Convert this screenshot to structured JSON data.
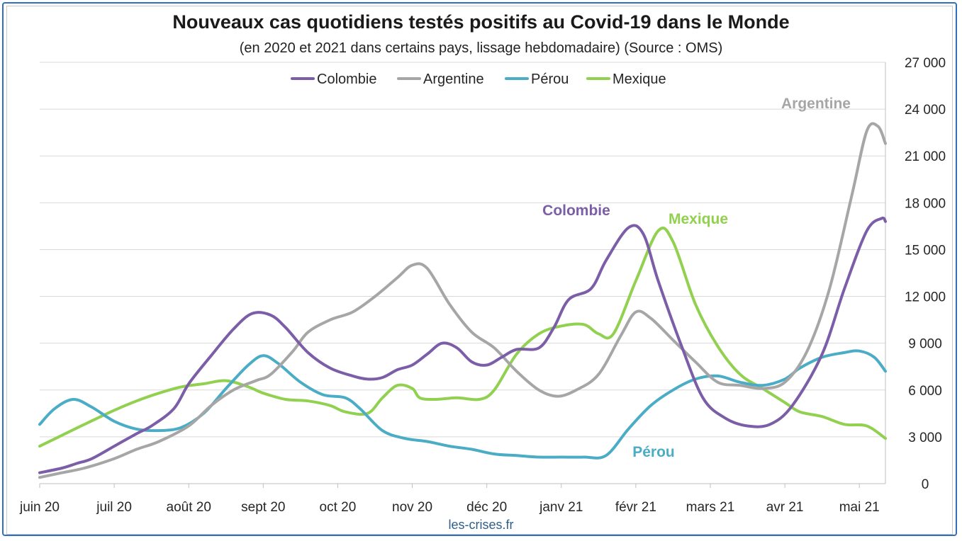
{
  "chart_data": {
    "type": "line",
    "title": "Nouveaux cas quotidiens testés positifs au Covid-19 dans le Monde",
    "subtitle": "(en 2020 et 2021 dans certains pays, lissage hebdomadaire) (Source : OMS)",
    "source_note": "les-crises.fr",
    "x_tick_labels": [
      "juin 20",
      "juil 20",
      "août 20",
      "sept 20",
      "oct 20",
      "nov 20",
      "déc 20",
      "janv 21",
      "févr 21",
      "mars 21",
      "avr 21",
      "mai 21"
    ],
    "y_tick_labels": [
      "0",
      "3 000",
      "6 000",
      "9 000",
      "12 000",
      "15 000",
      "18 000",
      "21 000",
      "24 000",
      "27 000"
    ],
    "ylim": [
      0,
      27000
    ],
    "y_axis_side": "right",
    "x_range_months": [
      0,
      11.35
    ],
    "grid": true,
    "legend_position": "top",
    "series": [
      {
        "name": "Colombie",
        "color": "#7b5ea7",
        "label": "Colombie",
        "points": [
          [
            0,
            700
          ],
          [
            0.3,
            1000
          ],
          [
            0.5,
            1300
          ],
          [
            0.7,
            1600
          ],
          [
            1.0,
            2400
          ],
          [
            1.3,
            3200
          ],
          [
            1.5,
            3700
          ],
          [
            1.8,
            4800
          ],
          [
            2.0,
            6400
          ],
          [
            2.3,
            8200
          ],
          [
            2.6,
            9900
          ],
          [
            2.85,
            10900
          ],
          [
            3.1,
            10800
          ],
          [
            3.3,
            10000
          ],
          [
            3.6,
            8400
          ],
          [
            3.9,
            7400
          ],
          [
            4.2,
            6900
          ],
          [
            4.4,
            6700
          ],
          [
            4.6,
            6800
          ],
          [
            4.8,
            7300
          ],
          [
            5.0,
            7600
          ],
          [
            5.2,
            8300
          ],
          [
            5.4,
            9000
          ],
          [
            5.6,
            8700
          ],
          [
            5.8,
            7800
          ],
          [
            6.0,
            7600
          ],
          [
            6.2,
            8100
          ],
          [
            6.4,
            8600
          ],
          [
            6.7,
            8700
          ],
          [
            6.9,
            10000
          ],
          [
            7.1,
            11800
          ],
          [
            7.4,
            12500
          ],
          [
            7.6,
            14300
          ],
          [
            7.9,
            16400
          ],
          [
            8.1,
            16000
          ],
          [
            8.3,
            13000
          ],
          [
            8.6,
            9000
          ],
          [
            8.9,
            5500
          ],
          [
            9.2,
            4200
          ],
          [
            9.5,
            3700
          ],
          [
            9.8,
            3800
          ],
          [
            10.1,
            5000
          ],
          [
            10.5,
            8300
          ],
          [
            10.8,
            12500
          ],
          [
            11.1,
            16200
          ],
          [
            11.3,
            17000
          ],
          [
            11.35,
            16800
          ]
        ]
      },
      {
        "name": "Argentine",
        "color": "#a6a6a6",
        "label": "Argentine",
        "points": [
          [
            0,
            400
          ],
          [
            0.3,
            700
          ],
          [
            0.6,
            1000
          ],
          [
            1.0,
            1600
          ],
          [
            1.3,
            2200
          ],
          [
            1.6,
            2700
          ],
          [
            2.0,
            3700
          ],
          [
            2.3,
            5000
          ],
          [
            2.6,
            6000
          ],
          [
            2.9,
            6600
          ],
          [
            3.1,
            7000
          ],
          [
            3.4,
            8500
          ],
          [
            3.6,
            9700
          ],
          [
            3.9,
            10500
          ],
          [
            4.2,
            11000
          ],
          [
            4.5,
            12000
          ],
          [
            4.8,
            13200
          ],
          [
            5.0,
            14000
          ],
          [
            5.2,
            13800
          ],
          [
            5.5,
            11500
          ],
          [
            5.8,
            9700
          ],
          [
            6.1,
            8700
          ],
          [
            6.4,
            7200
          ],
          [
            6.7,
            6000
          ],
          [
            6.95,
            5600
          ],
          [
            7.2,
            6000
          ],
          [
            7.5,
            7000
          ],
          [
            7.8,
            9500
          ],
          [
            8.0,
            11000
          ],
          [
            8.2,
            10600
          ],
          [
            8.5,
            9200
          ],
          [
            8.8,
            7800
          ],
          [
            9.1,
            6500
          ],
          [
            9.4,
            6300
          ],
          [
            9.7,
            6100
          ],
          [
            10.0,
            6500
          ],
          [
            10.3,
            8500
          ],
          [
            10.6,
            12500
          ],
          [
            10.9,
            18500
          ],
          [
            11.1,
            22600
          ],
          [
            11.25,
            22900
          ],
          [
            11.35,
            21800
          ]
        ]
      },
      {
        "name": "Pérou",
        "color": "#4bacc6",
        "label": "Pérou",
        "points": [
          [
            0,
            3800
          ],
          [
            0.2,
            4800
          ],
          [
            0.45,
            5400
          ],
          [
            0.7,
            4900
          ],
          [
            1.0,
            4000
          ],
          [
            1.3,
            3500
          ],
          [
            1.6,
            3400
          ],
          [
            1.9,
            3600
          ],
          [
            2.2,
            4500
          ],
          [
            2.5,
            6100
          ],
          [
            2.8,
            7600
          ],
          [
            3.0,
            8200
          ],
          [
            3.2,
            7700
          ],
          [
            3.5,
            6500
          ],
          [
            3.8,
            5700
          ],
          [
            4.1,
            5500
          ],
          [
            4.3,
            4800
          ],
          [
            4.6,
            3400
          ],
          [
            4.9,
            2900
          ],
          [
            5.2,
            2700
          ],
          [
            5.5,
            2400
          ],
          [
            5.8,
            2200
          ],
          [
            6.1,
            1900
          ],
          [
            6.4,
            1800
          ],
          [
            6.7,
            1700
          ],
          [
            7.0,
            1700
          ],
          [
            7.3,
            1700
          ],
          [
            7.6,
            1800
          ],
          [
            7.9,
            3500
          ],
          [
            8.2,
            5000
          ],
          [
            8.5,
            6000
          ],
          [
            8.8,
            6700
          ],
          [
            9.1,
            6900
          ],
          [
            9.4,
            6500
          ],
          [
            9.7,
            6300
          ],
          [
            10.0,
            6700
          ],
          [
            10.2,
            7400
          ],
          [
            10.5,
            8100
          ],
          [
            10.8,
            8400
          ],
          [
            11.0,
            8500
          ],
          [
            11.2,
            8100
          ],
          [
            11.35,
            7200
          ]
        ]
      },
      {
        "name": "Mexique",
        "color": "#92d050",
        "label": "Mexique",
        "points": [
          [
            0,
            2400
          ],
          [
            0.3,
            3100
          ],
          [
            0.6,
            3800
          ],
          [
            1.0,
            4700
          ],
          [
            1.3,
            5300
          ],
          [
            1.6,
            5800
          ],
          [
            1.9,
            6200
          ],
          [
            2.2,
            6400
          ],
          [
            2.5,
            6600
          ],
          [
            2.8,
            6200
          ],
          [
            3.0,
            5800
          ],
          [
            3.3,
            5400
          ],
          [
            3.6,
            5300
          ],
          [
            3.9,
            5000
          ],
          [
            4.1,
            4600
          ],
          [
            4.4,
            4500
          ],
          [
            4.6,
            5500
          ],
          [
            4.8,
            6300
          ],
          [
            5.0,
            6100
          ],
          [
            5.1,
            5500
          ],
          [
            5.3,
            5400
          ],
          [
            5.6,
            5500
          ],
          [
            5.9,
            5400
          ],
          [
            6.1,
            6000
          ],
          [
            6.4,
            8300
          ],
          [
            6.7,
            9600
          ],
          [
            7.0,
            10100
          ],
          [
            7.3,
            10200
          ],
          [
            7.5,
            9600
          ],
          [
            7.7,
            9600
          ],
          [
            8.0,
            13000
          ],
          [
            8.3,
            16200
          ],
          [
            8.5,
            15500
          ],
          [
            8.8,
            11500
          ],
          [
            9.1,
            8800
          ],
          [
            9.4,
            7000
          ],
          [
            9.7,
            6100
          ],
          [
            10.0,
            5200
          ],
          [
            10.2,
            4600
          ],
          [
            10.5,
            4300
          ],
          [
            10.8,
            3800
          ],
          [
            11.1,
            3700
          ],
          [
            11.35,
            2900
          ]
        ]
      }
    ]
  }
}
